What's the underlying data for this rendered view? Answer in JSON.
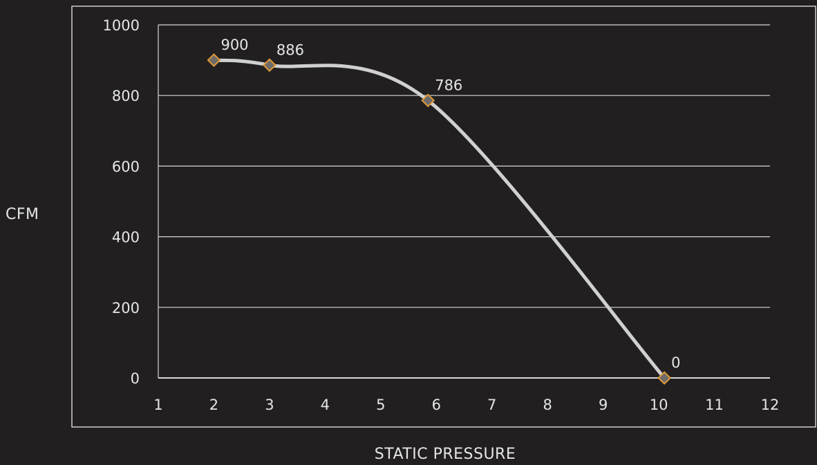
{
  "chart_data": {
    "type": "line",
    "xlabel": "STATIC PRESSURE",
    "ylabel": "CFM",
    "xlim": [
      1,
      12
    ],
    "ylim": [
      0,
      1000
    ],
    "x_ticks": [
      "1",
      "2",
      "3",
      "4",
      "5",
      "6",
      "7",
      "8",
      "9",
      "10",
      "11",
      "12"
    ],
    "y_ticks": [
      "0",
      "200",
      "400",
      "600",
      "800",
      "1000"
    ],
    "grid": true,
    "series": [
      {
        "points": [
          {
            "x": 2,
            "y": 900,
            "label": "900"
          },
          {
            "x": 3,
            "y": 886,
            "label": "886"
          },
          {
            "x": 5.85,
            "y": 786,
            "label": "786"
          },
          {
            "x": 10.1,
            "y": 0,
            "label": "0"
          }
        ]
      }
    ],
    "colors": {
      "background": "#221f20",
      "line": "#d0d0d0",
      "marker_fill": "#6e6b68",
      "marker_stroke": "#e09a3a",
      "grid": "#d8d8d8",
      "text": "#e6e6e6"
    }
  }
}
